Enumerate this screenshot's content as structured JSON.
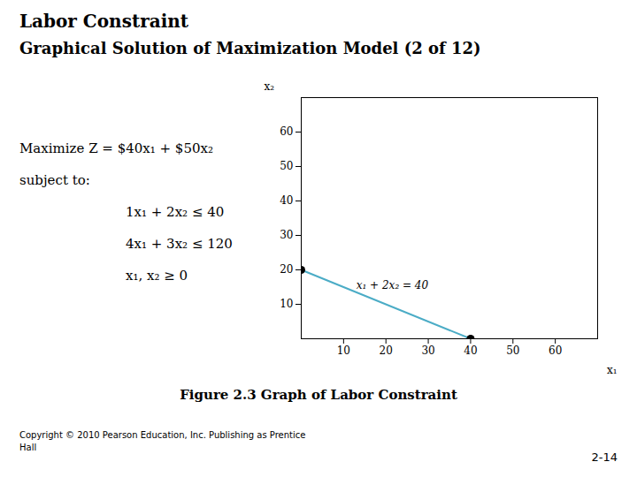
{
  "chart_data": {
    "type": "line",
    "title": "Labor Constraint",
    "subtitle": "Graphical Solution of Maximization Model (2 of 12)",
    "model": [
      "Maximize Z = $40x₁ + $50x₂",
      "subject to:",
      "1x₁ + 2x₂ ≤ 40",
      "4x₁ + 3x₂ ≤ 120",
      "x₁, x₂ ≥ 0"
    ],
    "series": [
      {
        "type": "line",
        "color": "#4bacc6",
        "x": [
          0,
          40
        ],
        "values": [
          20,
          0
        ]
      },
      {
        "type": "scatter",
        "marker": "circle",
        "color": "#000000",
        "x": [
          0,
          40
        ],
        "values": [
          20,
          0
        ]
      }
    ],
    "annotations": [
      {
        "text": "x₁ + 2x₂ = 40",
        "x": 13,
        "y": 14.5
      }
    ],
    "xlabel": "x₁",
    "ylabel": "x₂",
    "xlim": [
      0,
      70
    ],
    "ylim": [
      0,
      70
    ],
    "xticks": [
      10,
      20,
      30,
      40,
      50,
      60
    ],
    "yticks": [
      10,
      20,
      30,
      40,
      50,
      60
    ],
    "grid": false,
    "caption": "Figure 2.3   Graph of Labor Constraint",
    "footer": [
      "Copyright © 2010 Pearson Education, Inc. Publishing as Prentice",
      "Hall"
    ],
    "page_number": "2-14"
  }
}
